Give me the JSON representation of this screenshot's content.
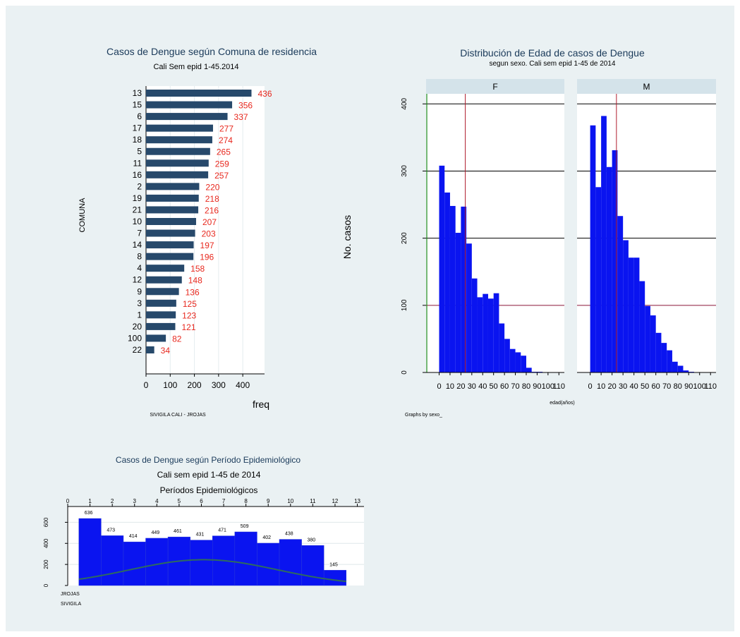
{
  "chart_data": [
    {
      "type": "bar",
      "orientation": "horizontal",
      "title": "Casos de  Dengue según Comuna de residencia",
      "subtitle": "Cali Sem epid 1-45.2014",
      "ylabel": "COMUNA",
      "xlabel": "freq",
      "note": "SIVIGILA CALI -  JROJAS",
      "categories": [
        "13",
        "15",
        "6",
        "17",
        "18",
        "5",
        "11",
        "16",
        "2",
        "19",
        "21",
        "10",
        "7",
        "14",
        "8",
        "4",
        "12",
        "9",
        "3",
        "1",
        "20",
        "100",
        "22"
      ],
      "values": [
        436,
        356,
        337,
        277,
        274,
        265,
        259,
        257,
        220,
        218,
        216,
        207,
        203,
        197,
        196,
        158,
        148,
        136,
        125,
        123,
        121,
        82,
        34
      ],
      "xticks": [
        "0",
        "100",
        "200",
        "300",
        "400"
      ],
      "xlim": [
        0,
        490
      ],
      "bar_color": "#27496b",
      "label_color": "#e8281e"
    },
    {
      "type": "histogram",
      "title": "Distribución de Edad de casos de Dengue",
      "subtitle": "segun sexo. Cali sem epid 1-45 de 2014",
      "ylabel": "No. casos",
      "xlabel": "edad(años)",
      "note": "Graphs by sexo_",
      "panels": [
        {
          "label": "F",
          "bin_start": 0,
          "bin_width": 5,
          "mean_line": 24,
          "values": [
            308,
            268,
            248,
            208,
            247,
            192,
            140,
            112,
            117,
            110,
            118,
            73,
            50,
            35,
            30,
            25,
            7,
            1,
            1,
            0
          ]
        },
        {
          "label": "M",
          "bin_start": 0,
          "bin_width": 5,
          "mean_line": 24,
          "values": [
            368,
            276,
            382,
            306,
            331,
            233,
            197,
            171,
            171,
            136,
            99,
            85,
            59,
            44,
            33,
            16,
            10,
            3,
            1,
            0
          ]
        }
      ],
      "yticks": [
        "0",
        "100",
        "200",
        "300",
        "400"
      ],
      "xticks": [
        "0",
        "10",
        "20",
        "30",
        "40",
        "50",
        "60",
        "70",
        "80",
        "90",
        "100",
        "110"
      ],
      "xlim": [
        -12,
        115
      ],
      "ylim": [
        0,
        415
      ],
      "reference_line": 100,
      "bar_color": "#0a14f0",
      "strip_color": "#d4e3ea"
    },
    {
      "type": "histogram",
      "title": "Casos de Dengue según Período Epidemiológico",
      "subtitle": "Cali sem epid 1-45 de 2014",
      "xlabel": "Períodos Epidemiológicos",
      "notes": [
        "JROJAS",
        "SIVIGILA"
      ],
      "bin_starts": [
        0.5,
        1.5,
        2.5,
        3.5,
        4.5,
        5.5,
        6.5,
        7.5,
        8.5,
        9.5,
        10.5,
        11.5
      ],
      "bin_width": 1,
      "values": [
        636,
        473,
        414,
        449,
        461,
        431,
        471,
        509,
        402,
        438,
        380,
        145
      ],
      "value_labels": [
        "636",
        "473",
        "414",
        "449",
        "461",
        "431",
        "471",
        "509",
        "402",
        "438",
        "380",
        "145"
      ],
      "normal_curve": {
        "mean": 6.1,
        "sd": 3.33,
        "scale": 2045
      },
      "xticks": [
        "0",
        "1",
        "2",
        "3",
        "4",
        "5",
        "6",
        "7",
        "8",
        "9",
        "10",
        "11",
        "12",
        "13"
      ],
      "yticks": [
        "0",
        "200",
        "400",
        "600"
      ],
      "xlim": [
        0,
        13.3
      ],
      "ylim": [
        0,
        750
      ],
      "bar_color": "#0a14f0",
      "curve_color": "#2e6b5e"
    }
  ]
}
